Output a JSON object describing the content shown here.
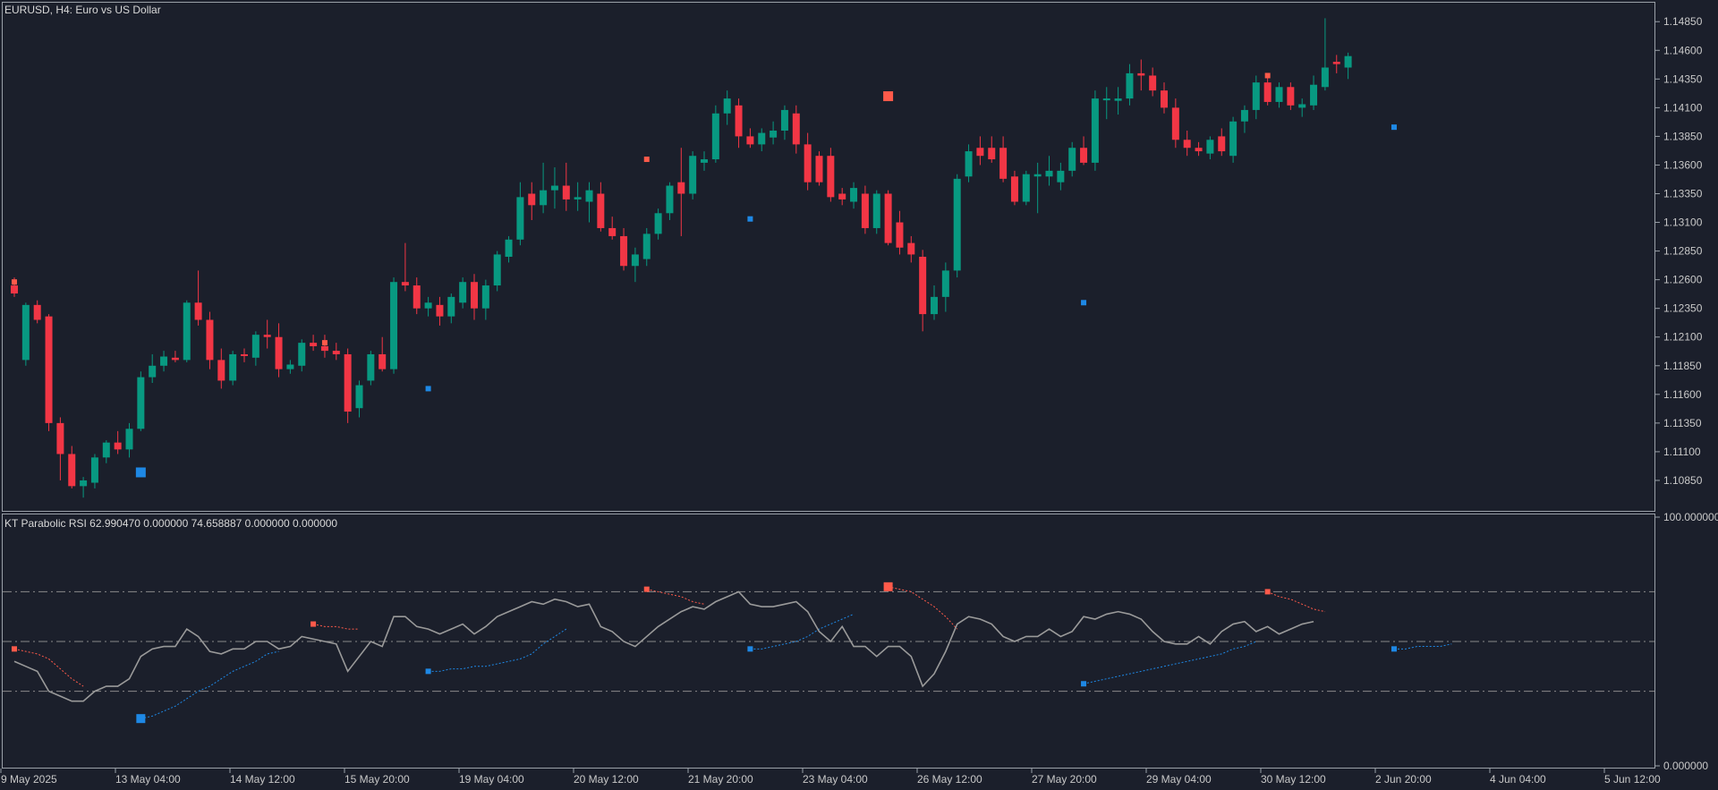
{
  "window": {
    "symbol_title": "EURUSD, H4:  Euro vs US Dollar",
    "indicator_title": "KT Parabolic RSI 62.990470 0.000000 74.658887 0.000000 0.000000"
  },
  "colors": {
    "background": "#1b1f2b",
    "bull": "#089981",
    "bear": "#f23645",
    "sell_signal": "#ff5a4a",
    "buy_signal": "#1e88e5",
    "rsi_line": "#9a9a9a",
    "grid_dash": "#8a8a8a"
  },
  "chart_data": [
    {
      "type": "candlestick",
      "symbol": "EURUSD",
      "timeframe": "H4",
      "ylim": [
        1.106,
        1.15
      ],
      "price_ticks": [
        "1.14850",
        "1.14600",
        "1.14350",
        "1.14100",
        "1.13850",
        "1.13600",
        "1.13350",
        "1.13100",
        "1.12850",
        "1.12600",
        "1.12350",
        "1.12100",
        "1.11850",
        "1.11600",
        "1.11350",
        "1.11100",
        "1.10850"
      ],
      "x_tick_labels": [
        "9 May 2025",
        "13 May 04:00",
        "14 May 12:00",
        "15 May 20:00",
        "19 May 04:00",
        "20 May 12:00",
        "21 May 20:00",
        "23 May 04:00",
        "26 May 12:00",
        "27 May 20:00",
        "29 May 04:00",
        "30 May 12:00",
        "2 Jun 20:00",
        "4 Jun 04:00",
        "5 Jun 12:00"
      ],
      "candles": [
        [
          1.1255,
          1.1262,
          1.1245,
          1.1248
        ],
        [
          1.119,
          1.124,
          1.1185,
          1.1238
        ],
        [
          1.1238,
          1.1242,
          1.1222,
          1.1225
        ],
        [
          1.1228,
          1.123,
          1.1128,
          1.1135
        ],
        [
          1.1135,
          1.114,
          1.1085,
          1.1108
        ],
        [
          1.1108,
          1.1115,
          1.1078,
          1.108
        ],
        [
          1.108,
          1.1088,
          1.107,
          1.1085
        ],
        [
          1.1083,
          1.1108,
          1.1078,
          1.1105
        ],
        [
          1.1105,
          1.112,
          1.11,
          1.1118
        ],
        [
          1.1118,
          1.1128,
          1.1108,
          1.1112
        ],
        [
          1.1112,
          1.1135,
          1.1105,
          1.113
        ],
        [
          1.113,
          1.118,
          1.1128,
          1.1175
        ],
        [
          1.1175,
          1.1195,
          1.117,
          1.1185
        ],
        [
          1.1185,
          1.1198,
          1.118,
          1.1193
        ],
        [
          1.1192,
          1.1198,
          1.1188,
          1.119
        ],
        [
          1.119,
          1.1242,
          1.1188,
          1.124
        ],
        [
          1.124,
          1.1268,
          1.122,
          1.1225
        ],
        [
          1.1225,
          1.1232,
          1.1182,
          1.119
        ],
        [
          1.119,
          1.12,
          1.1165,
          1.1172
        ],
        [
          1.1172,
          1.1198,
          1.1168,
          1.1195
        ],
        [
          1.1195,
          1.12,
          1.1188,
          1.1194
        ],
        [
          1.1192,
          1.1215,
          1.1185,
          1.1212
        ],
        [
          1.1212,
          1.1225,
          1.12,
          1.121
        ],
        [
          1.121,
          1.1222,
          1.1175,
          1.1182
        ],
        [
          1.1182,
          1.119,
          1.1178,
          1.1186
        ],
        [
          1.1185,
          1.1208,
          1.118,
          1.1205
        ],
        [
          1.1205,
          1.1212,
          1.1198,
          1.1202
        ],
        [
          1.1202,
          1.1212,
          1.1192,
          1.1198
        ],
        [
          1.1198,
          1.1205,
          1.119,
          1.1195
        ],
        [
          1.1195,
          1.12,
          1.1135,
          1.1145
        ],
        [
          1.1148,
          1.1172,
          1.114,
          1.1168
        ],
        [
          1.1172,
          1.1198,
          1.1168,
          1.1195
        ],
        [
          1.1195,
          1.121,
          1.118,
          1.1182
        ],
        [
          1.1182,
          1.1262,
          1.1178,
          1.1258
        ],
        [
          1.1258,
          1.1292,
          1.125,
          1.1255
        ],
        [
          1.1255,
          1.1262,
          1.123,
          1.1235
        ],
        [
          1.1235,
          1.1245,
          1.1228,
          1.124
        ],
        [
          1.1238,
          1.1245,
          1.122,
          1.1228
        ],
        [
          1.1228,
          1.1248,
          1.1222,
          1.1245
        ],
        [
          1.124,
          1.1262,
          1.1235,
          1.1258
        ],
        [
          1.1258,
          1.1265,
          1.1225,
          1.1235
        ],
        [
          1.1235,
          1.126,
          1.1225,
          1.1255
        ],
        [
          1.1255,
          1.1285,
          1.125,
          1.1282
        ],
        [
          1.128,
          1.1298,
          1.1275,
          1.1295
        ],
        [
          1.1295,
          1.1345,
          1.129,
          1.1332
        ],
        [
          1.1335,
          1.1345,
          1.1312,
          1.1325
        ],
        [
          1.1325,
          1.1362,
          1.1318,
          1.1338
        ],
        [
          1.1338,
          1.1358,
          1.1322,
          1.1342
        ],
        [
          1.1342,
          1.1362,
          1.132,
          1.133
        ],
        [
          1.133,
          1.1345,
          1.132,
          1.1332
        ],
        [
          1.1328,
          1.1345,
          1.131,
          1.1338
        ],
        [
          1.1335,
          1.1345,
          1.1302,
          1.1305
        ],
        [
          1.1305,
          1.1315,
          1.1295,
          1.1298
        ],
        [
          1.1298,
          1.1305,
          1.1268,
          1.1272
        ],
        [
          1.1272,
          1.1288,
          1.1258,
          1.1282
        ],
        [
          1.1278,
          1.1305,
          1.1272,
          1.13
        ],
        [
          1.13,
          1.1322,
          1.1295,
          1.1318
        ],
        [
          1.1318,
          1.1345,
          1.1312,
          1.1342
        ],
        [
          1.1345,
          1.1375,
          1.1298,
          1.1335
        ],
        [
          1.1335,
          1.1372,
          1.133,
          1.1368
        ],
        [
          1.1362,
          1.1372,
          1.1355,
          1.1365
        ],
        [
          1.1365,
          1.1412,
          1.1362,
          1.1405
        ],
        [
          1.1405,
          1.1425,
          1.1395,
          1.1418
        ],
        [
          1.1412,
          1.1418,
          1.1375,
          1.1385
        ],
        [
          1.1385,
          1.1392,
          1.1375,
          1.1378
        ],
        [
          1.1378,
          1.1392,
          1.1372,
          1.1388
        ],
        [
          1.1384,
          1.1398,
          1.1378,
          1.139
        ],
        [
          1.139,
          1.1412,
          1.1382,
          1.1408
        ],
        [
          1.1405,
          1.1412,
          1.137,
          1.1378
        ],
        [
          1.1378,
          1.1388,
          1.1338,
          1.1345
        ],
        [
          1.1368,
          1.1372,
          1.1342,
          1.1345
        ],
        [
          1.1368,
          1.1375,
          1.1328,
          1.1332
        ],
        [
          1.1335,
          1.134,
          1.1325,
          1.133
        ],
        [
          1.1328,
          1.1345,
          1.1322,
          1.134
        ],
        [
          1.1335,
          1.1342,
          1.13,
          1.1305
        ],
        [
          1.1305,
          1.1338,
          1.13,
          1.1335
        ],
        [
          1.1335,
          1.1338,
          1.129,
          1.1292
        ],
        [
          1.131,
          1.132,
          1.1282,
          1.1288
        ],
        [
          1.1292,
          1.1298,
          1.1275,
          1.1282
        ],
        [
          1.128,
          1.1286,
          1.1215,
          1.123
        ],
        [
          1.123,
          1.1255,
          1.1225,
          1.1245
        ],
        [
          1.1245,
          1.1275,
          1.1232,
          1.1268
        ],
        [
          1.1268,
          1.1352,
          1.1262,
          1.1348
        ],
        [
          1.135,
          1.1378,
          1.1345,
          1.1372
        ],
        [
          1.1375,
          1.1385,
          1.136,
          1.1368
        ],
        [
          1.1375,
          1.1385,
          1.1362,
          1.1365
        ],
        [
          1.1375,
          1.1385,
          1.1345,
          1.1348
        ],
        [
          1.135,
          1.1355,
          1.1325,
          1.1328
        ],
        [
          1.1328,
          1.1355,
          1.1325,
          1.1352
        ],
        [
          1.135,
          1.1362,
          1.1318,
          1.1352
        ],
        [
          1.135,
          1.1368,
          1.1342,
          1.1355
        ],
        [
          1.1345,
          1.1362,
          1.1338,
          1.1355
        ],
        [
          1.1355,
          1.138,
          1.135,
          1.1375
        ],
        [
          1.1375,
          1.1385,
          1.136,
          1.1362
        ],
        [
          1.1362,
          1.1425,
          1.1355,
          1.1418
        ],
        [
          1.1418,
          1.1428,
          1.14,
          1.1418
        ],
        [
          1.1416,
          1.1428,
          1.1404,
          1.1418
        ],
        [
          1.1418,
          1.1448,
          1.1412,
          1.144
        ],
        [
          1.144,
          1.1452,
          1.1425,
          1.1438
        ],
        [
          1.1438,
          1.1445,
          1.142,
          1.1425
        ],
        [
          1.1425,
          1.1432,
          1.1405,
          1.141
        ],
        [
          1.141,
          1.1418,
          1.1375,
          1.1382
        ],
        [
          1.1382,
          1.139,
          1.1368,
          1.1375
        ],
        [
          1.1375,
          1.138,
          1.1368,
          1.1372
        ],
        [
          1.137,
          1.1385,
          1.1365,
          1.1382
        ],
        [
          1.1385,
          1.1392,
          1.1368,
          1.1372
        ],
        [
          1.1368,
          1.1402,
          1.1362,
          1.1398
        ],
        [
          1.1398,
          1.1412,
          1.1388,
          1.1408
        ],
        [
          1.1408,
          1.1438,
          1.14,
          1.1432
        ],
        [
          1.1432,
          1.1436,
          1.1412,
          1.1415
        ],
        [
          1.1415,
          1.1432,
          1.141,
          1.1428
        ],
        [
          1.1428,
          1.1432,
          1.1408,
          1.1412
        ],
        [
          1.141,
          1.1418,
          1.1402,
          1.1413
        ],
        [
          1.1412,
          1.1438,
          1.1408,
          1.143
        ],
        [
          1.1428,
          1.1488,
          1.1425,
          1.1445
        ],
        [
          1.145,
          1.1456,
          1.144,
          1.1448
        ],
        [
          1.1445,
          1.1458,
          1.1435,
          1.1455
        ]
      ],
      "sell_signals": [
        {
          "index": 0,
          "price": 1.1258,
          "size": "small"
        },
        {
          "index": 27,
          "price": 1.1205,
          "size": "small"
        },
        {
          "index": 55,
          "price": 1.1365,
          "size": "small"
        },
        {
          "index": 76,
          "price": 1.142,
          "size": "large"
        },
        {
          "index": 109,
          "price": 1.1438,
          "size": "small"
        }
      ],
      "buy_signals": [
        {
          "index": 11,
          "price": 1.1092,
          "size": "large"
        },
        {
          "index": 36,
          "price": 1.1165,
          "size": "small"
        },
        {
          "index": 64,
          "price": 1.1313,
          "size": "small"
        },
        {
          "index": 93,
          "price": 1.124,
          "size": "small"
        },
        {
          "index": 120,
          "price": 1.1393,
          "size": "small"
        }
      ]
    },
    {
      "type": "line",
      "name": "KT Parabolic RSI",
      "ylim": [
        0,
        100
      ],
      "y_tick_labels": [
        "100.000000",
        "0.000000"
      ],
      "levels": [
        70,
        50,
        30
      ],
      "rsi": [
        42,
        40,
        38,
        30,
        28,
        26,
        26,
        30,
        32,
        32,
        35,
        44,
        47,
        48,
        48,
        55,
        52,
        46,
        45,
        47,
        47,
        50,
        50,
        47,
        48,
        52,
        51,
        50,
        49,
        38,
        44,
        50,
        48,
        60,
        60,
        56,
        55,
        53,
        55,
        57,
        53,
        56,
        60,
        62,
        64,
        66,
        65,
        67,
        66,
        64,
        65,
        56,
        54,
        50,
        48,
        52,
        56,
        59,
        62,
        64,
        63,
        66,
        68,
        70,
        65,
        64,
        64,
        65,
        66,
        62,
        54,
        50,
        56,
        48,
        48,
        44,
        48,
        48,
        44,
        32,
        37,
        46,
        57,
        60,
        59,
        57,
        52,
        50,
        52,
        52,
        55,
        52,
        54,
        60,
        59,
        61,
        62,
        61,
        59,
        54,
        50,
        49,
        49,
        52,
        49,
        54,
        57,
        58,
        54,
        56,
        53,
        55,
        57,
        58
      ],
      "sar_upper": [
        {
          "start": 0,
          "values": [
            47,
            46,
            45,
            43,
            39,
            35,
            32
          ]
        },
        {
          "start": 26,
          "values": [
            57,
            56,
            56,
            55,
            55
          ]
        },
        {
          "start": 55,
          "values": [
            71,
            70,
            69,
            68,
            66,
            65
          ]
        },
        {
          "start": 76,
          "values": [
            72,
            71,
            70,
            67,
            64,
            60,
            55
          ]
        },
        {
          "start": 109,
          "values": [
            70,
            68,
            67,
            65,
            63,
            62
          ]
        }
      ],
      "sar_lower": [
        {
          "start": 11,
          "values": [
            19,
            20,
            22,
            24,
            27,
            30,
            32,
            35,
            38,
            40,
            42,
            45,
            46
          ]
        },
        {
          "start": 36,
          "values": [
            38,
            38,
            39,
            39,
            40,
            40,
            41,
            42,
            43,
            45,
            49,
            52,
            55
          ]
        },
        {
          "start": 64,
          "values": [
            47,
            47,
            48,
            49,
            50,
            52,
            55,
            57,
            59,
            61
          ]
        },
        {
          "start": 93,
          "values": [
            33,
            34,
            35,
            36,
            37,
            38,
            39,
            40,
            41,
            42,
            43,
            44,
            45,
            47,
            48,
            50
          ]
        },
        {
          "start": 120,
          "values": [
            47,
            47,
            48,
            48,
            48,
            49
          ]
        }
      ]
    }
  ]
}
